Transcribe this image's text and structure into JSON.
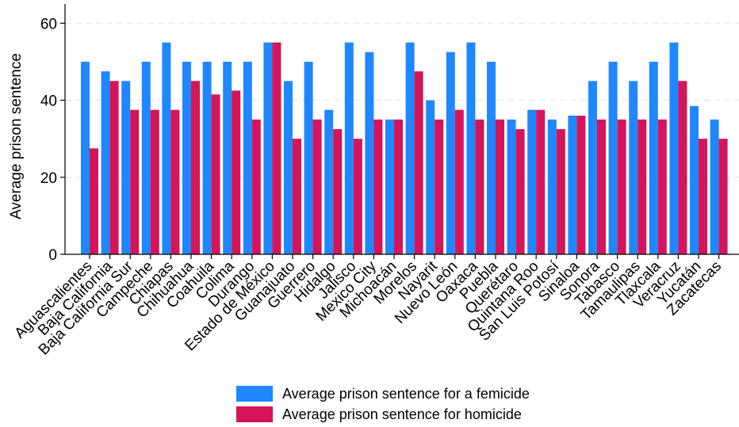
{
  "chart_data": {
    "type": "bar",
    "title": "",
    "xlabel": "",
    "ylabel": "Average prison sentence",
    "ylim": [
      0,
      65
    ],
    "yticks": [
      0,
      20,
      40,
      60
    ],
    "grid": true,
    "legend_position": "bottom",
    "categories": [
      "Aguascalientes",
      "Baja California",
      "Baja California Sur",
      "Campeche",
      "Chiapas",
      "Chihuahua",
      "Coahuila",
      "Colima",
      "Durango",
      "Estado de México",
      "Guanajuato",
      "Guerrero",
      "Hidalgo",
      "Jalisco",
      "Mexico City",
      "Michoacán",
      "Morelos",
      "Nayarit",
      "Nuevo León",
      "Oaxaca",
      "Puebla",
      "Querétaro",
      "Quintana Roo",
      "San Luis Potosí",
      "Sinaloa",
      "Sonora",
      "Tabasco",
      "Tamaulipas",
      "Tlaxcala",
      "Veracruz",
      "Yucatán",
      "Zacatecas"
    ],
    "series": [
      {
        "name": "Average prison sentence for a femicide",
        "color": "#1f87ff",
        "values": [
          50,
          47.5,
          45,
          50,
          55,
          50,
          50,
          50,
          50,
          55,
          45,
          50,
          37.5,
          55,
          52.5,
          35,
          55,
          40,
          52.5,
          55,
          50,
          35,
          37.5,
          35,
          36,
          45,
          50,
          45,
          50,
          55,
          38.5,
          35
        ]
      },
      {
        "name": "Average prison sentence for homicide",
        "color": "#d5145a",
        "values": [
          27.5,
          45,
          37.5,
          37.5,
          37.5,
          45,
          41.5,
          42.5,
          35,
          55,
          30,
          35,
          32.5,
          30,
          35,
          35,
          47.5,
          35,
          37.5,
          35,
          35,
          32.5,
          37.5,
          32.5,
          36,
          35,
          35,
          35,
          35,
          45,
          30,
          30
        ]
      }
    ]
  }
}
